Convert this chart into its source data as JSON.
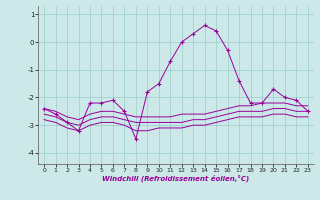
{
  "xlabel": "Windchill (Refroidissement éolien,°C)",
  "bg_color": "#cce8e8",
  "line_color": "#990099",
  "xlim": [
    -0.5,
    23.5
  ],
  "ylim": [
    -4.4,
    1.3
  ],
  "yticks": [
    1,
    0,
    -1,
    -2,
    -3,
    -4
  ],
  "xticks": [
    0,
    1,
    2,
    3,
    4,
    5,
    6,
    7,
    8,
    9,
    10,
    11,
    12,
    13,
    14,
    15,
    16,
    17,
    18,
    19,
    20,
    21,
    22,
    23
  ],
  "series": [
    {
      "x": [
        0,
        1,
        2,
        3,
        4,
        5,
        6,
        7,
        8,
        9,
        10,
        11,
        12,
        13,
        14,
        15,
        16,
        17,
        18,
        19,
        20,
        21,
        22,
        23
      ],
      "y": [
        -2.4,
        -2.6,
        -2.9,
        -3.2,
        -2.2,
        -2.2,
        -2.1,
        -2.5,
        -3.5,
        -1.8,
        -1.5,
        -0.7,
        0.0,
        0.3,
        0.6,
        0.4,
        -0.3,
        -1.4,
        -2.2,
        -2.2,
        -1.7,
        -2.0,
        -2.1,
        -2.5
      ],
      "marker": "+"
    },
    {
      "x": [
        0,
        1,
        2,
        3,
        4,
        5,
        6,
        7,
        8,
        9,
        10,
        11,
        12,
        13,
        14,
        15,
        16,
        17,
        18,
        19,
        20,
        21,
        22,
        23
      ],
      "y": [
        -2.4,
        -2.5,
        -2.7,
        -2.8,
        -2.6,
        -2.5,
        -2.5,
        -2.6,
        -2.7,
        -2.7,
        -2.7,
        -2.7,
        -2.6,
        -2.6,
        -2.6,
        -2.5,
        -2.4,
        -2.3,
        -2.3,
        -2.2,
        -2.2,
        -2.2,
        -2.3,
        -2.3
      ],
      "marker": null
    },
    {
      "x": [
        0,
        1,
        2,
        3,
        4,
        5,
        6,
        7,
        8,
        9,
        10,
        11,
        12,
        13,
        14,
        15,
        16,
        17,
        18,
        19,
        20,
        21,
        22,
        23
      ],
      "y": [
        -2.6,
        -2.7,
        -2.9,
        -3.0,
        -2.8,
        -2.7,
        -2.7,
        -2.8,
        -2.9,
        -2.9,
        -2.9,
        -2.9,
        -2.9,
        -2.8,
        -2.8,
        -2.7,
        -2.6,
        -2.5,
        -2.5,
        -2.5,
        -2.4,
        -2.4,
        -2.5,
        -2.5
      ],
      "marker": null
    },
    {
      "x": [
        0,
        1,
        2,
        3,
        4,
        5,
        6,
        7,
        8,
        9,
        10,
        11,
        12,
        13,
        14,
        15,
        16,
        17,
        18,
        19,
        20,
        21,
        22,
        23
      ],
      "y": [
        -2.8,
        -2.9,
        -3.1,
        -3.2,
        -3.0,
        -2.9,
        -2.9,
        -3.0,
        -3.2,
        -3.2,
        -3.1,
        -3.1,
        -3.1,
        -3.0,
        -3.0,
        -2.9,
        -2.8,
        -2.7,
        -2.7,
        -2.7,
        -2.6,
        -2.6,
        -2.7,
        -2.7
      ],
      "marker": null
    }
  ]
}
